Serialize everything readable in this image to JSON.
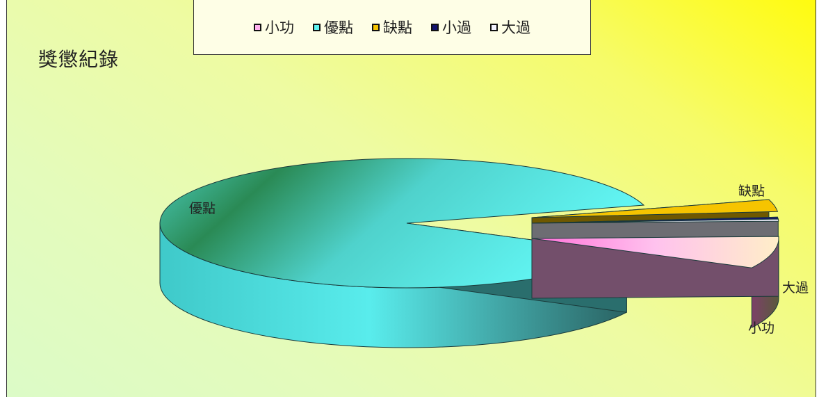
{
  "chart_data": {
    "type": "pie",
    "title": "獎懲紀錄",
    "categories": [
      "小功",
      "優點",
      "缺點",
      "小過",
      "大過"
    ],
    "values": [
      8,
      88,
      3,
      0.5,
      0.5
    ],
    "legend_position": "top",
    "colors": [
      "#ffb0ee",
      "#5ef4f2",
      "#f6c400",
      "#13136e",
      "#f2f2ff"
    ]
  }
}
